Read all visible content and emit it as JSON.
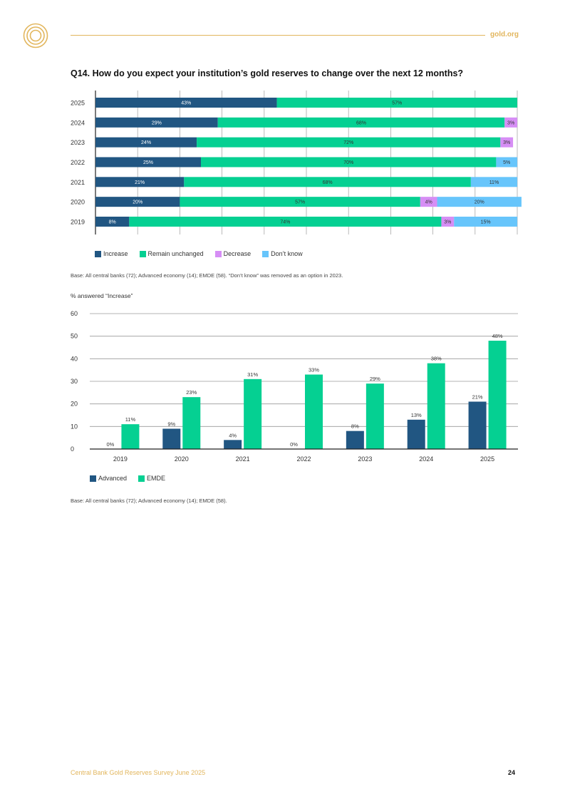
{
  "header": {
    "site": "gold.org"
  },
  "question": "Q14. How do you expect your institution’s gold reserves to change over the next 12 months?",
  "legend1": [
    "Increase",
    "Remain unchanged",
    "Decrease",
    "Don’t know"
  ],
  "base1": "Base: All central banks (72); Advanced economy (14); EMDE (58). “Don’t know” was removed as an option in 2023.",
  "chart2_ylabel": "% answered “Increase”",
  "legend2": [
    "Advanced",
    "EMDE"
  ],
  "base2": "Base: All central banks (72); Advanced economy (14); EMDE (58).",
  "footer": {
    "title": "Central Bank Gold Reserves Survey June 2025",
    "page": "24"
  },
  "colors": {
    "increase": "#215682",
    "unchanged": "#05d092",
    "decrease": "#d68ef5",
    "dontknow": "#67c5fb",
    "advanced": "#215682",
    "emde": "#05d092",
    "gold": "#e2b65d"
  },
  "chart_data": [
    {
      "type": "bar",
      "orientation": "horizontal",
      "stacked": true,
      "title": "Q14. How do you expect your institution’s gold reserves to change over the next 12 months?",
      "categories": [
        "2025",
        "2024",
        "2023",
        "2022",
        "2021",
        "2020",
        "2019"
      ],
      "xlim": [
        0,
        100
      ],
      "series": [
        {
          "name": "Increase",
          "values": [
            43,
            29,
            24,
            25,
            21,
            20,
            8
          ]
        },
        {
          "name": "Remain unchanged",
          "values": [
            57,
            68,
            72,
            70,
            68,
            57,
            74
          ]
        },
        {
          "name": "Decrease",
          "values": [
            0,
            3,
            3,
            0,
            0,
            4,
            3
          ]
        },
        {
          "name": "Don’t know",
          "values": [
            0,
            0,
            0,
            5,
            11,
            20,
            15
          ]
        }
      ],
      "legend": "bottom-left"
    },
    {
      "type": "bar",
      "title": "",
      "ylabel": "% answered “Increase”",
      "categories": [
        "2019",
        "2020",
        "2021",
        "2022",
        "2023",
        "2024",
        "2025"
      ],
      "ylim": [
        0,
        60
      ],
      "yticks": [
        0,
        10,
        20,
        30,
        40,
        50,
        60
      ],
      "series": [
        {
          "name": "Advanced",
          "values": [
            0,
            9,
            4,
            0,
            8,
            13,
            21
          ]
        },
        {
          "name": "EMDE",
          "values": [
            11,
            23,
            31,
            33,
            29,
            38,
            48
          ]
        }
      ],
      "legend": "bottom-left"
    }
  ]
}
